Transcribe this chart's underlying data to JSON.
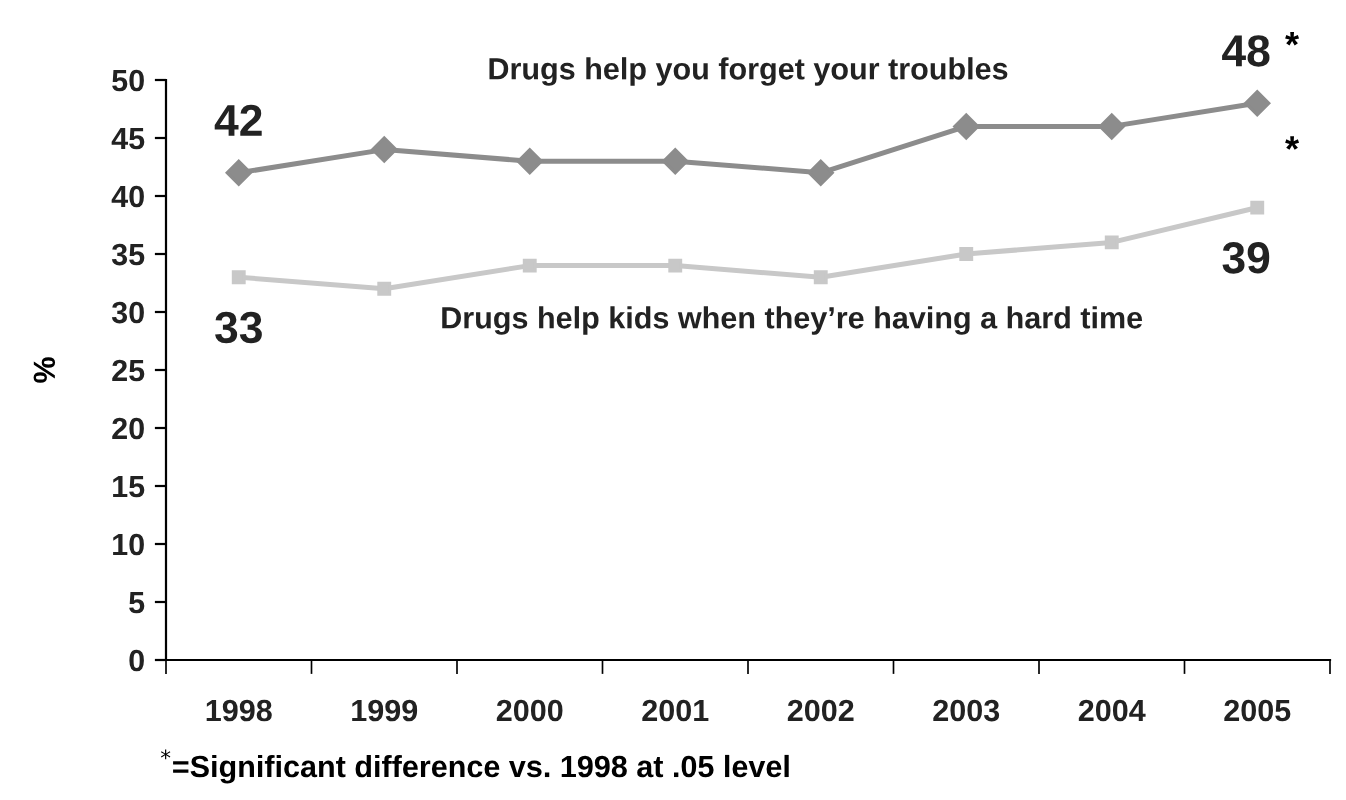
{
  "chart_data": {
    "type": "line",
    "ylabel": "%",
    "categories": [
      "1998",
      "1999",
      "2000",
      "2001",
      "2002",
      "2003",
      "2004",
      "2005"
    ],
    "series": [
      {
        "name": "Drugs help you forget your troubles",
        "color": "#8c8c8c",
        "marker": "diamond",
        "values": [
          42,
          44,
          43,
          43,
          42,
          46,
          46,
          48
        ],
        "value_labels": [
          "42",
          null,
          null,
          null,
          null,
          null,
          null,
          "48"
        ]
      },
      {
        "name": "Drugs help kids when they’re having a hard time",
        "color": "#c8c8c8",
        "marker": "square",
        "values": [
          33,
          32,
          34,
          34,
          33,
          35,
          36,
          39
        ],
        "value_labels": [
          "33",
          null,
          null,
          null,
          null,
          null,
          null,
          "39"
        ]
      }
    ],
    "ylim": [
      0,
      50
    ],
    "yticks": [
      0,
      5,
      10,
      15,
      20,
      25,
      30,
      35,
      40,
      45,
      50
    ],
    "grid": false,
    "legend": false,
    "line_style": "solid",
    "annotations": [
      {
        "text": "*",
        "x": "2005",
        "y": 48
      },
      {
        "text": "*",
        "x": "2005",
        "y": 39
      },
      "$^{*}$=Significant difference vs. 1998 at .05 level"
    ]
  }
}
